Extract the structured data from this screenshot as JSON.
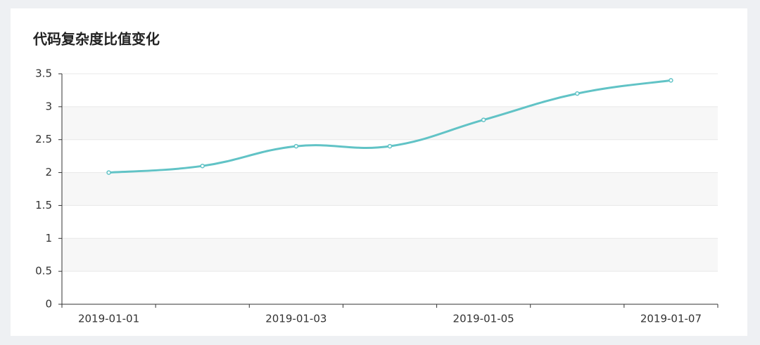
{
  "chart_data": {
    "type": "line",
    "title": "代码复杂度比值变化",
    "categories": [
      "2019-01-01",
      null,
      "2019-01-03",
      null,
      "2019-01-05",
      null,
      "2019-01-07"
    ],
    "values": [
      2,
      2.1,
      2.4,
      2.4,
      2.8,
      3.2,
      3.4
    ],
    "color": "#61c3c6",
    "smooth": true,
    "ylim": [
      0,
      3.5
    ],
    "yticks": [
      0,
      0.5,
      1,
      1.5,
      2,
      2.5,
      3,
      3.5
    ],
    "grid": true
  }
}
